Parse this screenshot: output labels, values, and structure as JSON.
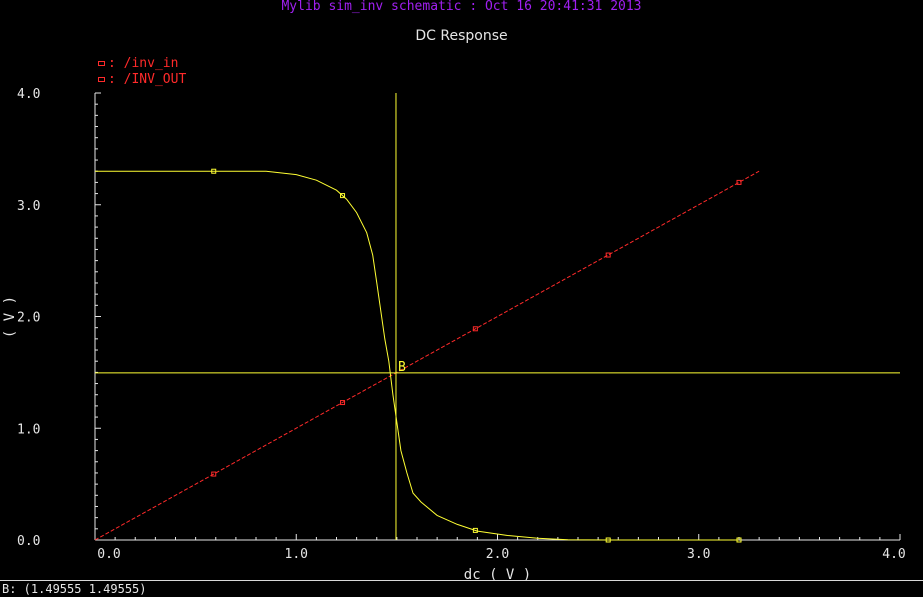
{
  "window": {
    "title": "Mylib sim_inv schematic : Oct 16 20:41:31 2013"
  },
  "status_bar": {
    "text": "B: (1.49555 1.49555)"
  },
  "colors": {
    "background": "#000000",
    "axis": "#e6e6e6",
    "title": "#a020f0",
    "inv_in": "#ff2a2a",
    "inv_out": "#ffff33",
    "cursor": "#ffff33"
  },
  "chart_data": {
    "type": "line",
    "title": "DC Response",
    "xlabel": "dc ( V )",
    "ylabel": "( V )",
    "xlim": [
      0.0,
      4.0
    ],
    "ylim": [
      0.0,
      4.0
    ],
    "xticks": [
      "0.0",
      "1.0",
      "2.0",
      "3.0",
      "4.0"
    ],
    "yticks": [
      "0.0",
      "1.0",
      "2.0",
      "3.0",
      "4.0"
    ],
    "grid": false,
    "legend": "top-left",
    "series": [
      {
        "name": "/inv_in",
        "color": "#ff2a2a",
        "dashed": true,
        "x": [
          0.0,
          0.59,
          1.23,
          1.89,
          2.55,
          3.2,
          3.3
        ],
        "y": [
          0.0,
          0.59,
          1.23,
          1.89,
          2.55,
          3.2,
          3.3
        ],
        "markers": [
          0.59,
          1.23,
          1.89,
          2.55,
          3.2
        ]
      },
      {
        "name": "/INV_OUT",
        "color": "#ffff33",
        "dashed": false,
        "x": [
          0.0,
          0.55,
          0.85,
          1.0,
          1.1,
          1.2,
          1.25,
          1.3,
          1.35,
          1.38,
          1.4,
          1.42,
          1.44,
          1.46,
          1.48,
          1.5,
          1.52,
          1.55,
          1.58,
          1.62,
          1.7,
          1.8,
          1.9,
          2.05,
          2.2,
          2.35,
          2.55,
          3.2
        ],
        "y": [
          3.3,
          3.3,
          3.3,
          3.27,
          3.22,
          3.13,
          3.05,
          2.93,
          2.75,
          2.55,
          2.3,
          2.05,
          1.8,
          1.6,
          1.3,
          1.05,
          0.8,
          0.6,
          0.42,
          0.34,
          0.22,
          0.14,
          0.08,
          0.04,
          0.015,
          0.003,
          0.0,
          0.0
        ],
        "markers": [
          0.59,
          1.23,
          1.89,
          2.55,
          3.2
        ]
      }
    ],
    "cursor": {
      "label": "B",
      "x": 1.49555,
      "y": 1.49555
    }
  }
}
